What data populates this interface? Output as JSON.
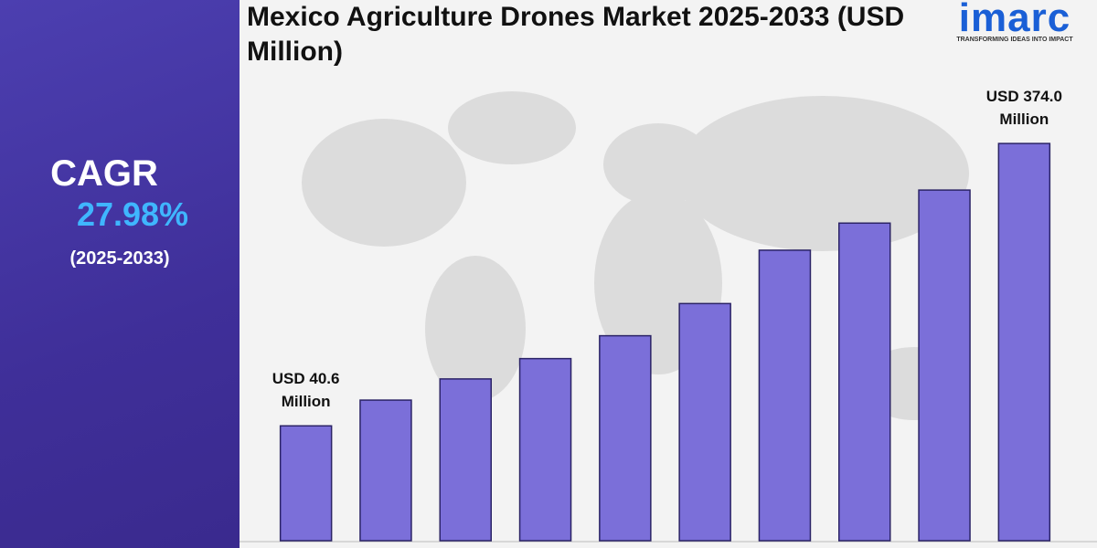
{
  "chart_data": {
    "type": "bar",
    "title": "Mexico Agriculture Drones Market 2025-2033 (USD Million)",
    "cagr_label": "CAGR",
    "cagr": "27.98%",
    "period": "(2025-2033)",
    "brand": "imarc",
    "tagline": "TRANSFORMING IDEAS INTO IMPACT",
    "categories": [
      null,
      null,
      null,
      null,
      null,
      null,
      null,
      null,
      null,
      null
    ],
    "values": [
      40.6,
      71,
      96,
      120,
      147,
      185,
      248,
      280,
      319,
      374.0
    ],
    "value_labels": [
      "USD 40.6 Million",
      null,
      null,
      null,
      null,
      null,
      null,
      null,
      null,
      "USD 374.0 Million"
    ],
    "color": "#7b6fd9",
    "ylim": [
      -95,
      400
    ]
  }
}
